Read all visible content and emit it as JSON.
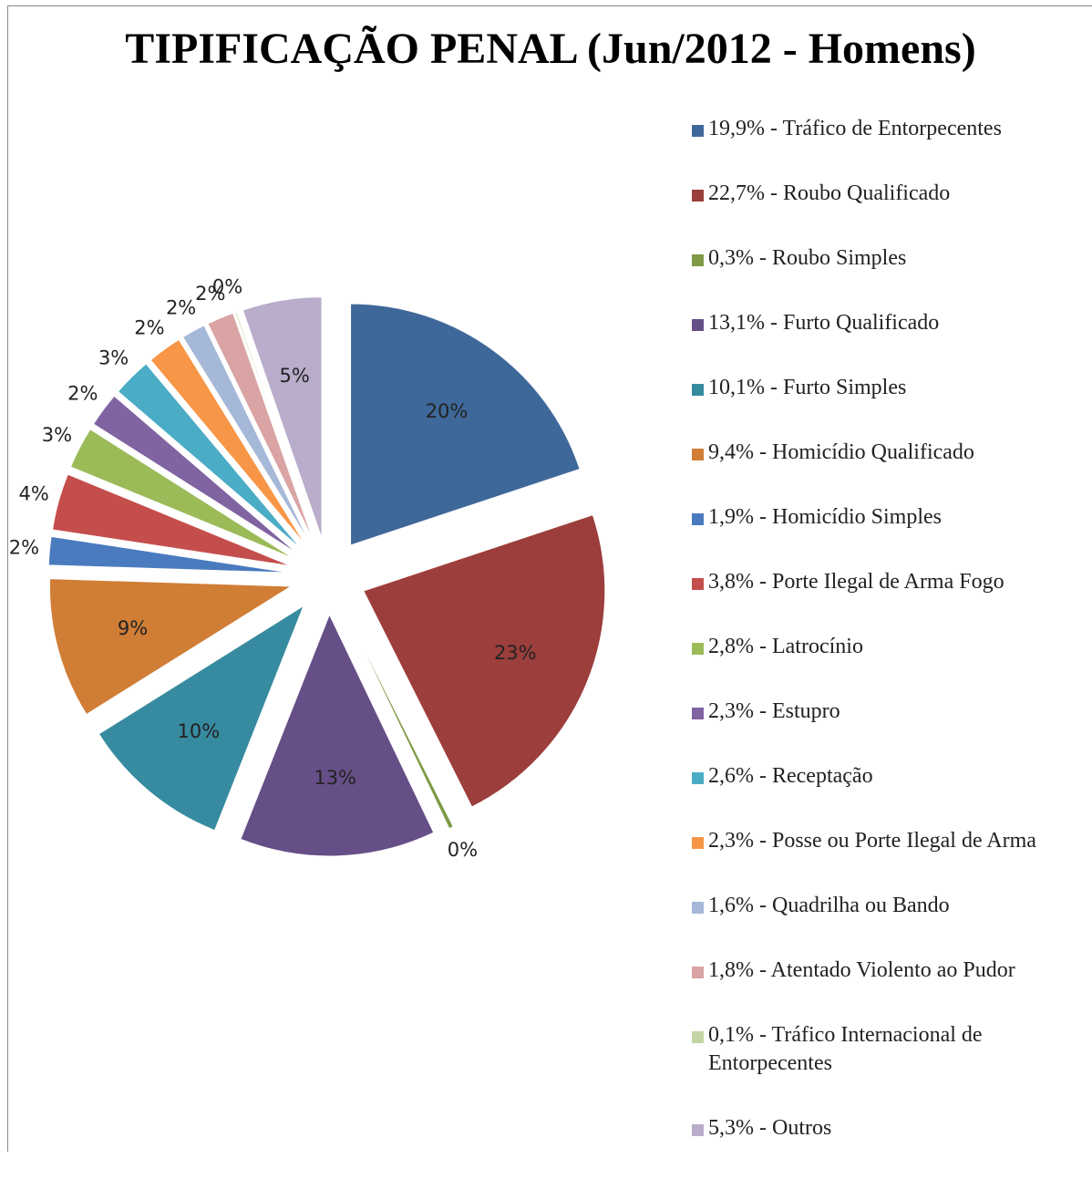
{
  "chart_data": {
    "type": "pie",
    "title": "TIPIFICAÇÃO PENAL (Jun/2012 - Homens)",
    "categories": [
      "19,9% - Tráfico de Entorpecentes",
      "22,7% - Roubo Qualificado",
      "0,3% - Roubo Simples",
      "13,1% - Furto Qualificado",
      "10,1% - Furto Simples",
      "9,4% - Homicídio Qualificado",
      "1,9% - Homicídio Simples",
      "3,8% - Porte Ilegal de Arma Fogo",
      "2,8% - Latrocínio",
      "2,3% - Estupro",
      "2,6% - Receptação",
      "2,3% - Posse ou Porte Ilegal de Arma",
      "1,6% - Quadrilha ou Bando",
      "1,8% - Atentado Violento ao Pudor",
      "0,1% - Tráfico Internacional de Entorpecentes",
      "5,3% - Outros"
    ],
    "values": [
      19.9,
      22.7,
      0.3,
      13.1,
      10.1,
      9.4,
      1.9,
      3.8,
      2.8,
      2.3,
      2.6,
      2.3,
      1.6,
      1.8,
      0.1,
      5.3
    ],
    "value_labels": [
      "20%",
      "23%",
      "0%",
      "13%",
      "10%",
      "9%",
      "2%",
      "4%",
      "3%",
      "2%",
      "3%",
      "2%",
      "2%",
      "2%",
      "0%",
      "5%"
    ],
    "colors": [
      "#3F689A",
      "#9B3E3C",
      "#7E9A45",
      "#664E86",
      "#378BA0",
      "#D07D36",
      "#4A7BBE",
      "#C44E4C",
      "#9BBB59",
      "#8064A2",
      "#4BACC6",
      "#F79646",
      "#A5B8D8",
      "#D9A4A3",
      "#C2D5A2",
      "#B9ADCB"
    ],
    "legend": "right"
  }
}
